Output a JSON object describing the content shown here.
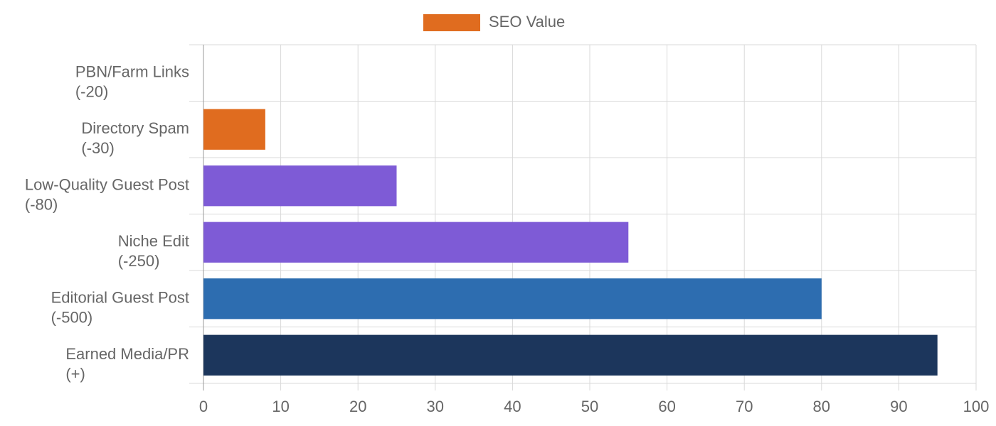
{
  "chart_data": {
    "type": "bar",
    "orientation": "horizontal",
    "categories": [
      [
        "PBN/Farm Links",
        "(-20)"
      ],
      [
        "Directory Spam",
        "(-30)"
      ],
      [
        "Low-Quality Guest Post",
        "(-80)"
      ],
      [
        "Niche Edit",
        "(-250)"
      ],
      [
        "Editorial Guest Post",
        "(-500)"
      ],
      [
        "Earned Media/PR",
        "(+)"
      ]
    ],
    "series": [
      {
        "name": "SEO Value",
        "color": "#e06c1f",
        "values": [
          0,
          8,
          25,
          55,
          80,
          95
        ],
        "colors": [
          "#e06c1f",
          "#e06c1f",
          "#7e5bd6",
          "#7e5bd6",
          "#2d6db0",
          "#1c365c"
        ]
      }
    ],
    "xlim": [
      0,
      100
    ],
    "xticks": [
      0,
      10,
      20,
      30,
      40,
      50,
      60,
      70,
      80,
      90,
      100
    ],
    "grid": true,
    "legend": "top"
  }
}
